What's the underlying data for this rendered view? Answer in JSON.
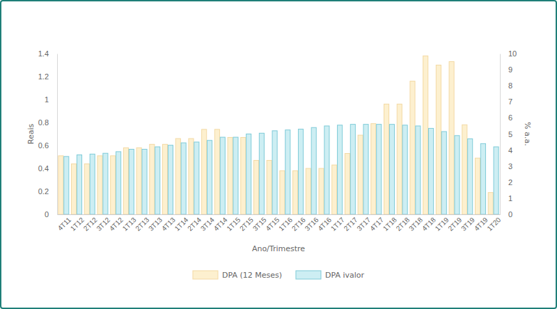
{
  "chart_data": {
    "type": "bar",
    "x_label": "Ano/Trimestre",
    "y_label": "Reais",
    "y2_label": "% a.a.",
    "categories": [
      "4T11",
      "1T12",
      "2T12",
      "3T12",
      "4T12",
      "1T13",
      "2T13",
      "3T13",
      "4T13",
      "1T14",
      "2T14",
      "3T14",
      "4T14",
      "1T15",
      "2T15",
      "3T15",
      "4T15",
      "1T16",
      "2T16",
      "3T16",
      "4T16",
      "1T17",
      "2T17",
      "3T17",
      "4T17",
      "1T18",
      "2T18",
      "3T18",
      "4T18",
      "1T19",
      "2T19",
      "3T19",
      "4T19",
      "1T20"
    ],
    "series": [
      {
        "name": "DPA (12 Meses)",
        "color": "#fdf0cf",
        "values": [
          0.51,
          0.44,
          0.44,
          0.51,
          0.51,
          0.58,
          0.58,
          0.61,
          0.61,
          0.66,
          0.66,
          0.74,
          0.74,
          0.67,
          0.67,
          0.47,
          0.47,
          0.38,
          0.38,
          0.4,
          0.4,
          0.43,
          0.53,
          0.69,
          0.79,
          0.96,
          0.96,
          1.16,
          1.38,
          1.3,
          1.33,
          0.78,
          0.49,
          0.19
        ]
      },
      {
        "name": "DPA ivalor",
        "color": "#cdeef3",
        "axis": "y2",
        "values": [
          3.6,
          3.7,
          3.75,
          3.8,
          3.9,
          4.05,
          4.05,
          4.2,
          4.3,
          4.45,
          4.5,
          4.6,
          4.8,
          4.8,
          5.0,
          5.05,
          5.2,
          5.25,
          5.3,
          5.4,
          5.5,
          5.55,
          5.6,
          5.6,
          5.6,
          5.6,
          5.55,
          5.5,
          5.35,
          5.15,
          4.9,
          4.7,
          4.4,
          4.2
        ]
      }
    ],
    "ylim": [
      0,
      1.4
    ],
    "yticks": [
      0,
      0.2,
      0.4,
      0.6,
      0.8,
      1,
      1.2,
      1.4
    ],
    "y2lim": [
      0,
      10
    ],
    "y2ticks": [
      0,
      1,
      2,
      3,
      4,
      5,
      6,
      7,
      8,
      9,
      10
    ],
    "grid": false,
    "legend": "bottom"
  }
}
